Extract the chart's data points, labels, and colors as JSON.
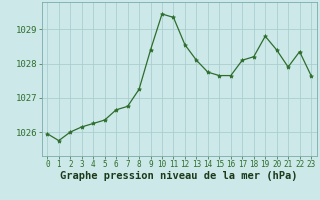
{
  "x": [
    0,
    1,
    2,
    3,
    4,
    5,
    6,
    7,
    8,
    9,
    10,
    11,
    12,
    13,
    14,
    15,
    16,
    17,
    18,
    19,
    20,
    21,
    22,
    23
  ],
  "y": [
    1025.95,
    1025.75,
    1026.0,
    1026.15,
    1026.25,
    1026.35,
    1026.65,
    1026.75,
    1027.25,
    1028.4,
    1029.45,
    1029.35,
    1028.55,
    1028.1,
    1027.75,
    1027.65,
    1027.65,
    1028.1,
    1028.2,
    1028.8,
    1028.4,
    1027.9,
    1028.35,
    1027.65
  ],
  "line_color": "#2d6e2d",
  "marker": "*",
  "marker_size": 3,
  "bg_color": "#cde8e8",
  "grid_color": "#aacece",
  "xlabel": "Graphe pression niveau de la mer (hPa)",
  "xlabel_fontsize": 7.5,
  "ylabel_ticks": [
    1026,
    1027,
    1028,
    1029
  ],
  "ylim": [
    1025.3,
    1029.8
  ],
  "xlim": [
    -0.5,
    23.5
  ],
  "tick_label_color": "#2d6e2d",
  "xlabel_color": "#1a3a1a",
  "xtick_fontsize": 5.5,
  "ytick_fontsize": 6.5
}
